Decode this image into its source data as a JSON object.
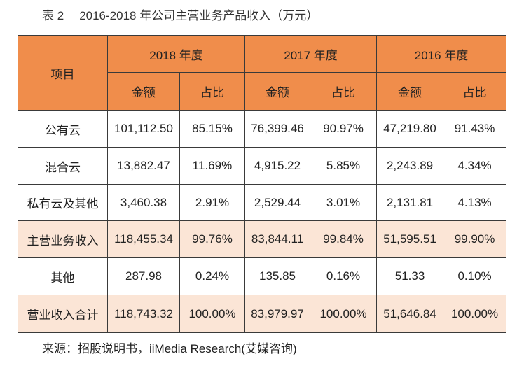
{
  "caption": {
    "label": "表 2",
    "title": "2016-2018 年公司主营业务产品收入（万元）"
  },
  "source": "来源：招股说明书，iiMedia Research(艾媒咨询)",
  "colors": {
    "header": "#F08D4B",
    "highlight_row": "#FBE5D6",
    "border": "#3a3a3a"
  },
  "chart_data": {
    "type": "table",
    "title": "2016-2018 年公司主营业务产品收入（万元）",
    "row_header": "项目",
    "years": [
      "2018 年度",
      "2017 年度",
      "2016 年度"
    ],
    "subcolumns": [
      "金额",
      "占比"
    ],
    "rows": [
      {
        "label": "公有云",
        "highlight": false,
        "values": [
          "101,112.50",
          "85.15%",
          "76,399.46",
          "90.97%",
          "47,219.80",
          "91.43%"
        ]
      },
      {
        "label": "混合云",
        "highlight": false,
        "values": [
          "13,882.47",
          "11.69%",
          "4,915.22",
          "5.85%",
          "2,243.89",
          "4.34%"
        ]
      },
      {
        "label": "私有云及其他",
        "highlight": false,
        "values": [
          "3,460.38",
          "2.91%",
          "2,529.44",
          "3.01%",
          "2,131.81",
          "4.13%"
        ]
      },
      {
        "label": "主营业务收入",
        "highlight": true,
        "values": [
          "118,455.34",
          "99.76%",
          "83,844.11",
          "99.84%",
          "51,595.51",
          "99.90%"
        ]
      },
      {
        "label": "其他",
        "highlight": false,
        "values": [
          "287.98",
          "0.24%",
          "135.85",
          "0.16%",
          "51.33",
          "0.10%"
        ]
      },
      {
        "label": "营业收入合计",
        "highlight": true,
        "values": [
          "118,743.32",
          "100.00%",
          "83,979.97",
          "100.00%",
          "51,646.84",
          "100.00%"
        ]
      }
    ]
  }
}
